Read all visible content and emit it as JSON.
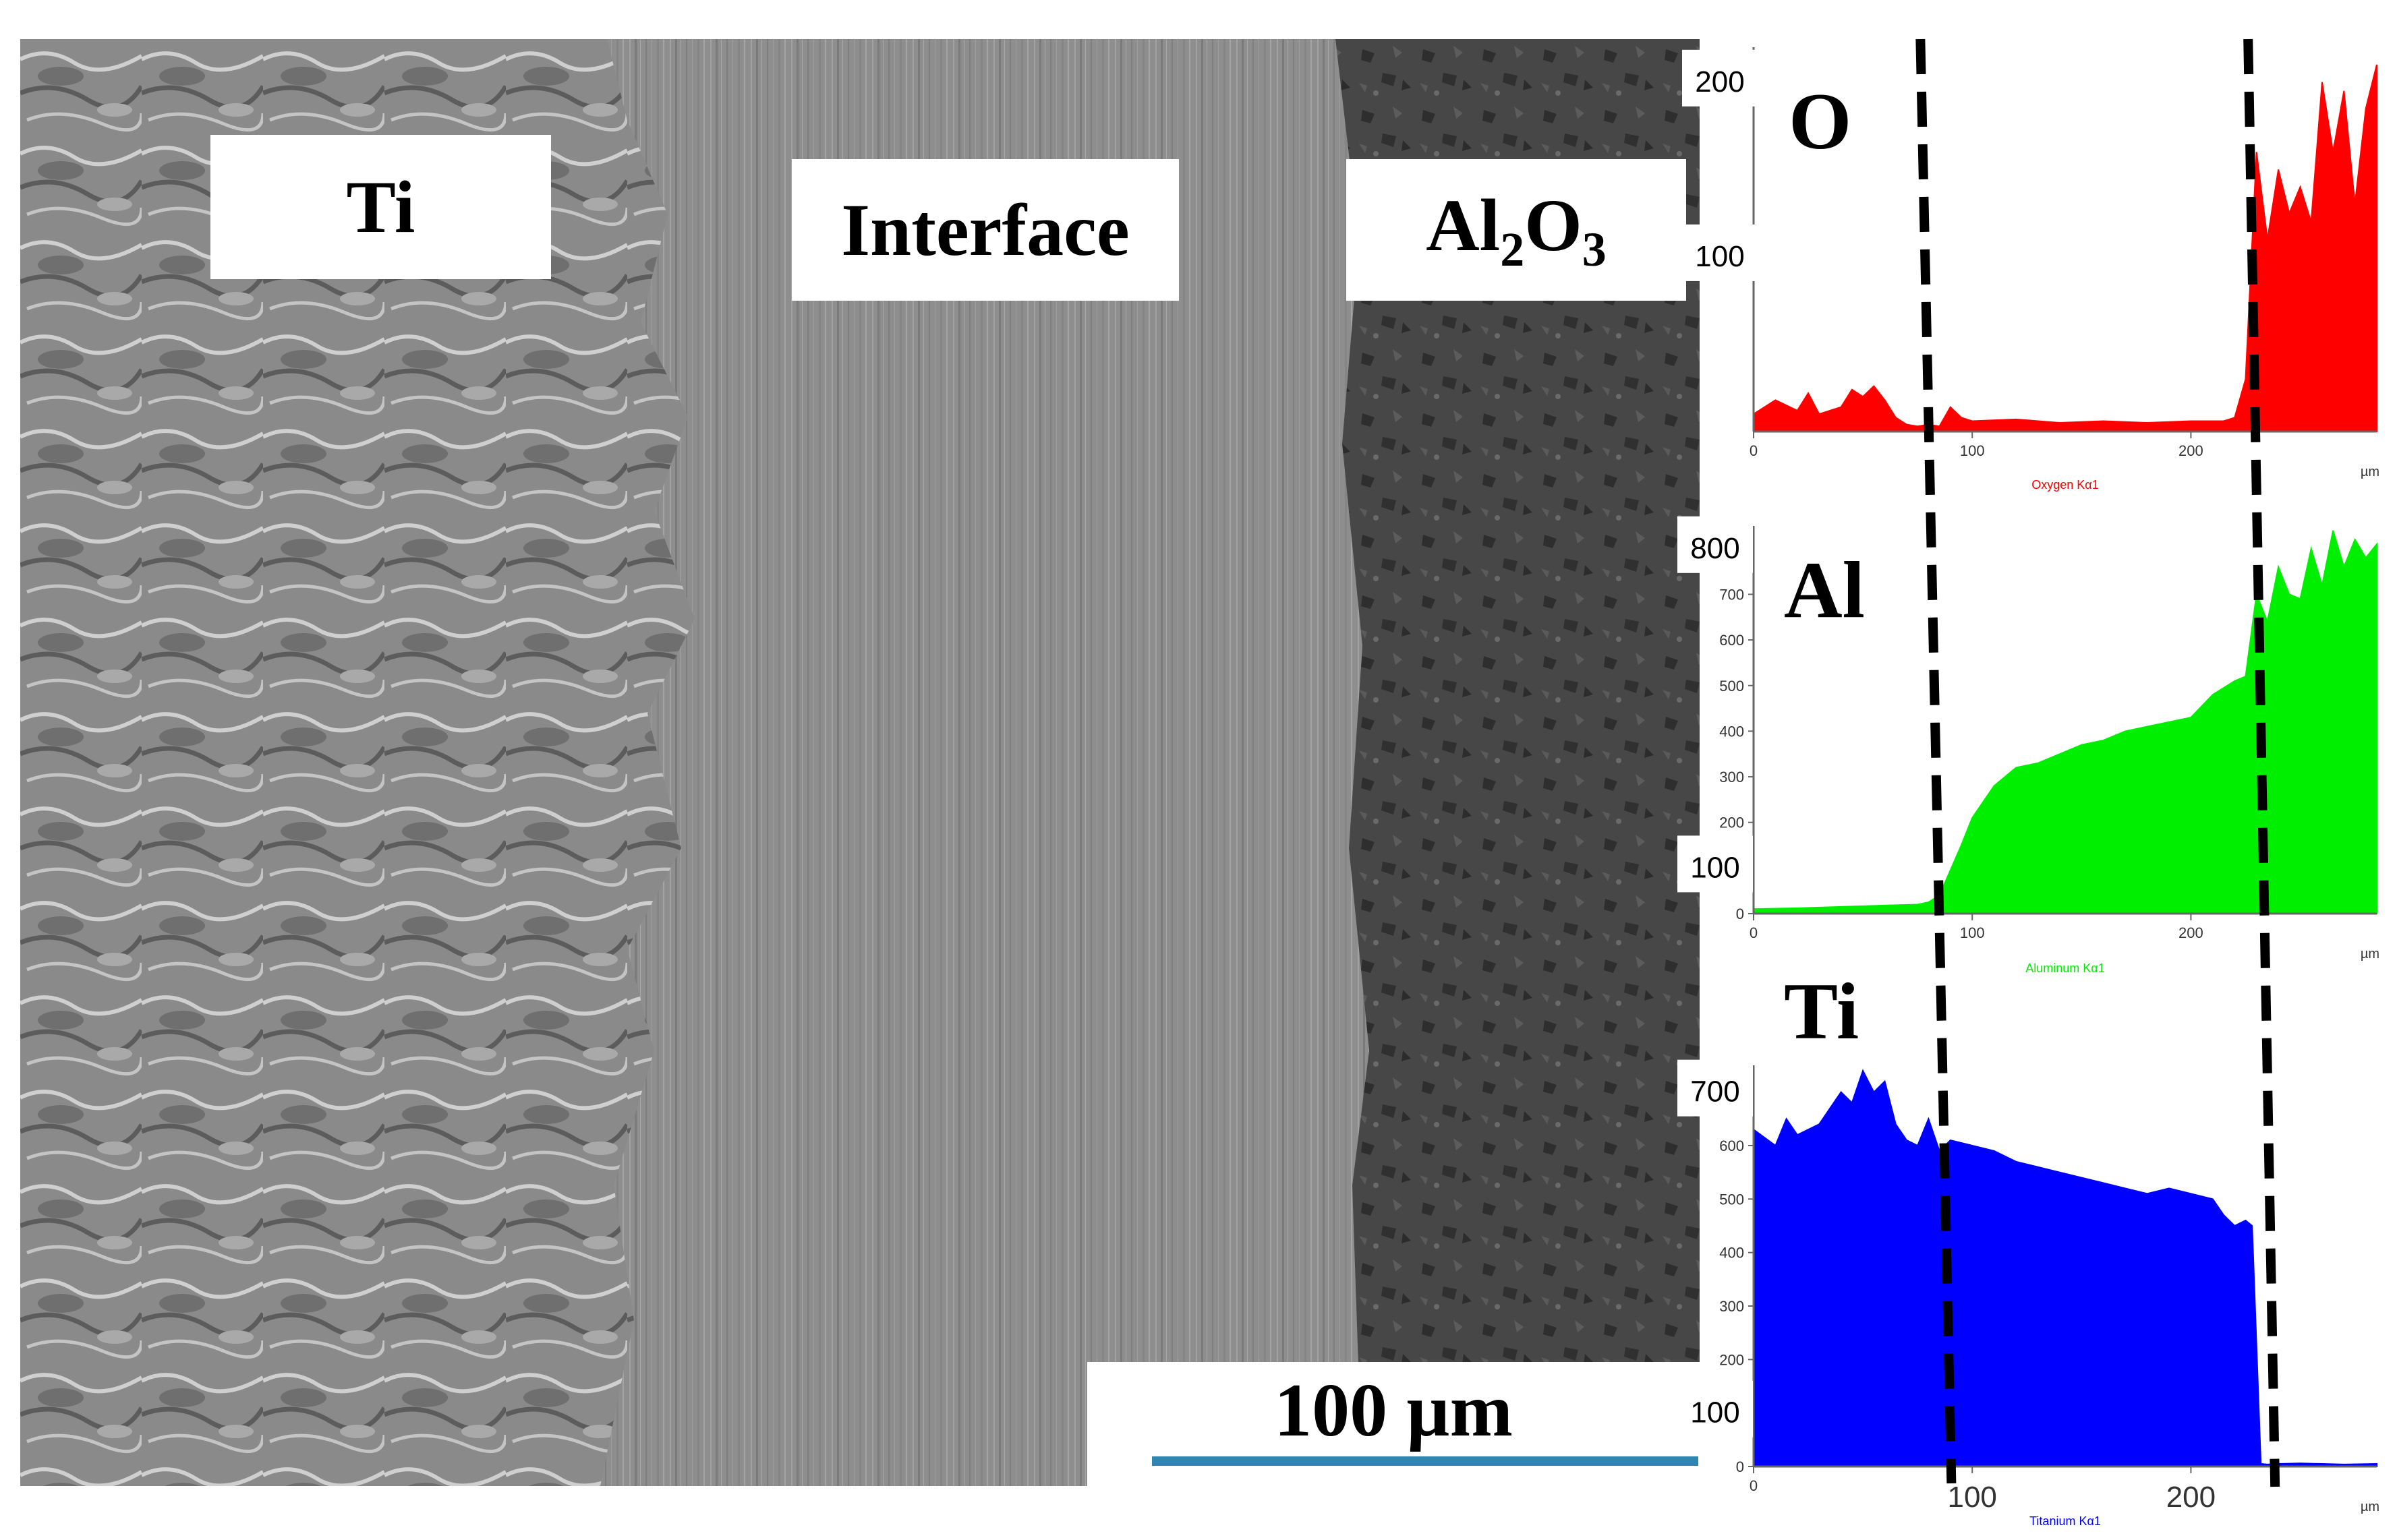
{
  "micrograph": {
    "regions": [
      {
        "key": "ti",
        "label": "Ti"
      },
      {
        "key": "interface",
        "label": "Interface"
      },
      {
        "key": "al2o3",
        "label_main": "Al",
        "sub1": "2",
        "mid": "O",
        "sub2": "3"
      }
    ],
    "scale_bar_label": "100 µm"
  },
  "colors": {
    "oxygen": "#ff0000",
    "aluminum": "#00ee00",
    "titanium": "#0000ff",
    "marker": "#000000",
    "scale_bar": "#2f86b0"
  },
  "chart_data": [
    {
      "type": "area",
      "element": "O",
      "series_label": "Oxygen Kα1",
      "x_unit": "µm",
      "xlim": [
        0,
        285
      ],
      "ylim": [
        0,
        220
      ],
      "x_ticks": [
        "0",
        "100",
        "200"
      ],
      "y_ticks": [],
      "big_y_labels": [
        "200",
        "100"
      ],
      "big_y_values": [
        200,
        100
      ],
      "x": [
        0,
        10,
        20,
        25,
        30,
        40,
        45,
        50,
        55,
        60,
        65,
        70,
        75,
        80,
        85,
        90,
        95,
        100,
        120,
        140,
        160,
        180,
        200,
        215,
        220,
        225,
        230,
        235,
        240,
        245,
        250,
        255,
        260,
        265,
        270,
        275,
        280,
        285
      ],
      "y": [
        10,
        18,
        12,
        22,
        10,
        14,
        24,
        20,
        26,
        18,
        8,
        4,
        3,
        4,
        3,
        14,
        8,
        6,
        7,
        5,
        6,
        5,
        6,
        6,
        8,
        30,
        160,
        110,
        150,
        125,
        140,
        120,
        200,
        160,
        195,
        130,
        185,
        210
      ]
    },
    {
      "type": "area",
      "element": "Al",
      "series_label": "Aluminum Kα1",
      "x_unit": "µm",
      "xlim": [
        0,
        285
      ],
      "ylim": [
        0,
        850
      ],
      "x_ticks": [
        "0",
        "100",
        "200"
      ],
      "y_ticks": [
        "0",
        "100",
        "200",
        "300",
        "400",
        "500",
        "600",
        "700"
      ],
      "big_y_labels": [
        "800",
        "100"
      ],
      "big_y_values": [
        800,
        100
      ],
      "x": [
        0,
        20,
        40,
        60,
        75,
        80,
        85,
        90,
        95,
        100,
        110,
        120,
        130,
        140,
        150,
        160,
        170,
        180,
        190,
        200,
        210,
        220,
        225,
        230,
        235,
        240,
        245,
        250,
        255,
        260,
        265,
        270,
        275,
        280,
        285
      ],
      "y": [
        10,
        12,
        15,
        18,
        20,
        25,
        40,
        95,
        150,
        210,
        280,
        320,
        330,
        350,
        370,
        380,
        400,
        410,
        420,
        430,
        480,
        510,
        520,
        700,
        640,
        760,
        700,
        690,
        800,
        720,
        840,
        760,
        820,
        780,
        810
      ]
    },
    {
      "type": "area",
      "element": "Ti",
      "series_label": "Titanium Kα1",
      "x_unit": "µm",
      "xlim": [
        0,
        285
      ],
      "ylim": [
        0,
        750
      ],
      "x_ticks": [
        "0",
        "100",
        "200"
      ],
      "y_ticks": [
        "0",
        "100",
        "200",
        "300",
        "400",
        "500",
        "600"
      ],
      "big_y_labels": [
        "700",
        "100"
      ],
      "big_y_values": [
        700,
        100
      ],
      "x": [
        0,
        10,
        15,
        20,
        30,
        40,
        45,
        50,
        55,
        60,
        65,
        70,
        75,
        80,
        85,
        90,
        100,
        110,
        120,
        130,
        140,
        150,
        160,
        170,
        180,
        190,
        200,
        210,
        215,
        220,
        225,
        228,
        232,
        235,
        240,
        250,
        260,
        270,
        285
      ],
      "y": [
        630,
        600,
        650,
        620,
        640,
        700,
        680,
        740,
        700,
        720,
        640,
        610,
        600,
        650,
        590,
        610,
        600,
        590,
        570,
        560,
        550,
        540,
        530,
        520,
        510,
        520,
        510,
        500,
        470,
        450,
        460,
        450,
        5,
        4,
        5,
        6,
        5,
        4,
        5
      ]
    }
  ],
  "markers_um": [
    80,
    228
  ]
}
